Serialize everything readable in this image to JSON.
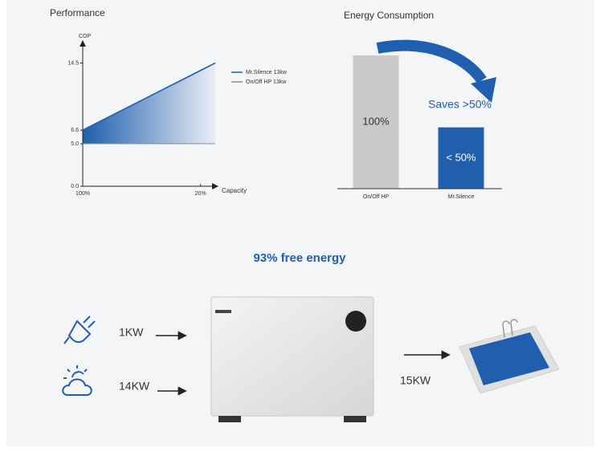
{
  "chart_data": [
    {
      "type": "line",
      "title": "Performance",
      "ylabel": "COP",
      "xlabel": "Capacity",
      "xlim": [
        100,
        10
      ],
      "ylim": [
        0,
        17
      ],
      "xticks": [
        {
          "value": 100,
          "label": "100%"
        },
        {
          "value": 20,
          "label": "20%"
        }
      ],
      "yticks": [
        {
          "value": 0,
          "label": "0.0"
        },
        {
          "value": 5,
          "label": "5.0"
        },
        6.6,
        14.5
      ],
      "series": [
        {
          "name": "Mr.Silence 13kw",
          "color": "#1f5fae",
          "x": [
            100,
            10
          ],
          "values": [
            6.6,
            14.5
          ]
        },
        {
          "name": "On/Off HP 13kw",
          "color": "#8a8a8a",
          "x": [
            100,
            10
          ],
          "values": [
            5,
            5
          ]
        }
      ]
    },
    {
      "type": "bar",
      "title": "Energy Consumption",
      "ylim": [
        0,
        100
      ],
      "categories": [
        "On/Off HP",
        "Mr.Silence"
      ],
      "values": [
        100,
        46
      ],
      "value_labels": [
        "100%",
        "< 50%"
      ],
      "colors": [
        "#c9c9c9",
        "#1f5fae"
      ],
      "annotation": "Saves >50%"
    }
  ],
  "headline": "93% free energy",
  "inputs": [
    "1KW",
    "14KW"
  ],
  "output": "15KW"
}
